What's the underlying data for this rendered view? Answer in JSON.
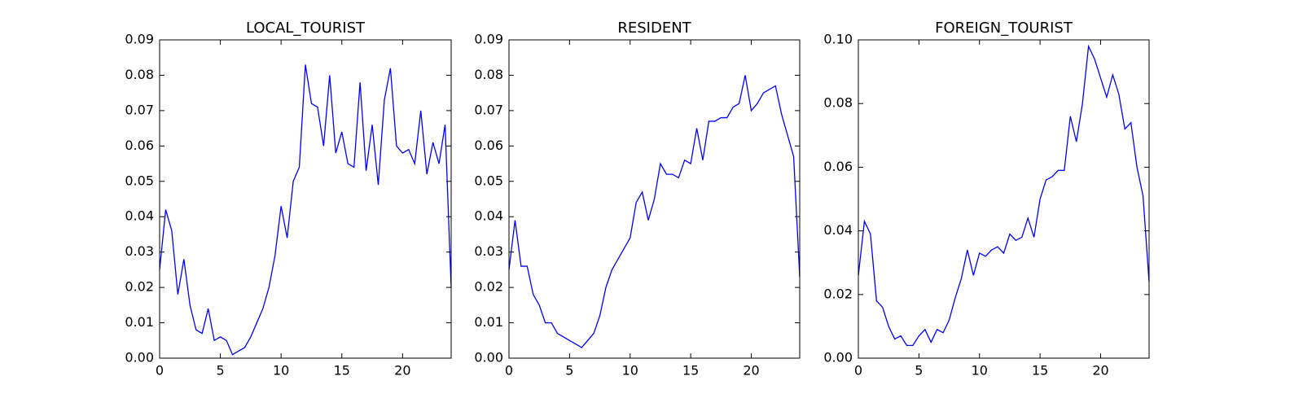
{
  "chart_data": [
    {
      "type": "line",
      "title": "LOCAL_TOURIST",
      "color": "#0000ff",
      "x": [
        0,
        0.5,
        1,
        1.5,
        2,
        2.5,
        3,
        3.5,
        4,
        4.5,
        5,
        5.5,
        6,
        6.5,
        7,
        7.5,
        8,
        8.5,
        9,
        9.5,
        10,
        10.5,
        11,
        11.5,
        12,
        12.5,
        13,
        13.5,
        14,
        14.5,
        15,
        15.5,
        16,
        16.5,
        17,
        17.5,
        18,
        18.5,
        19,
        19.5,
        20,
        20.5,
        21,
        21.5,
        22,
        22.5,
        23,
        23.5,
        24
      ],
      "values": [
        0.025,
        0.042,
        0.036,
        0.018,
        0.028,
        0.015,
        0.008,
        0.007,
        0.014,
        0.005,
        0.006,
        0.005,
        0.001,
        0.002,
        0.003,
        0.006,
        0.01,
        0.014,
        0.02,
        0.029,
        0.043,
        0.034,
        0.05,
        0.054,
        0.083,
        0.072,
        0.071,
        0.06,
        0.08,
        0.058,
        0.064,
        0.055,
        0.054,
        0.078,
        0.053,
        0.066,
        0.049,
        0.073,
        0.082,
        0.06,
        0.058,
        0.059,
        0.055,
        0.07,
        0.052,
        0.061,
        0.055,
        0.066,
        0.02
      ],
      "xlim": [
        0,
        24
      ],
      "xticks": [
        0,
        5,
        10,
        15,
        20
      ],
      "ylim": [
        0,
        0.09
      ],
      "yticks": [
        {
          "value": 0,
          "label": "0.00"
        },
        0.01,
        0.02,
        0.03,
        0.04,
        0.05,
        0.06,
        0.07,
        0.08,
        0.09
      ]
    },
    {
      "type": "line",
      "title": "RESIDENT",
      "color": "#0000ff",
      "x": [
        0,
        0.5,
        1,
        1.5,
        2,
        2.5,
        3,
        3.5,
        4,
        4.5,
        5,
        5.5,
        6,
        6.5,
        7,
        7.5,
        8,
        8.5,
        9,
        9.5,
        10,
        10.5,
        11,
        11.5,
        12,
        12.5,
        13,
        13.5,
        14,
        14.5,
        15,
        15.5,
        16,
        16.5,
        17,
        17.5,
        18,
        18.5,
        19,
        19.5,
        20,
        20.5,
        21,
        21.5,
        22,
        22.5,
        23,
        23.5,
        24
      ],
      "values": [
        0.025,
        0.039,
        0.026,
        0.026,
        0.018,
        0.015,
        0.01,
        0.01,
        0.007,
        0.006,
        0.005,
        0.004,
        0.003,
        0.005,
        0.007,
        0.012,
        0.02,
        0.025,
        0.028,
        0.031,
        0.034,
        0.044,
        0.047,
        0.039,
        0.045,
        0.055,
        0.052,
        0.052,
        0.051,
        0.056,
        0.055,
        0.065,
        0.056,
        0.067,
        0.067,
        0.068,
        0.068,
        0.071,
        0.072,
        0.08,
        0.07,
        0.072,
        0.075,
        0.076,
        0.077,
        0.069,
        0.063,
        0.057,
        0.023
      ],
      "xlim": [
        0,
        24
      ],
      "xticks": [
        0,
        5,
        10,
        15,
        20
      ],
      "ylim": [
        0,
        0.09
      ],
      "yticks": [
        {
          "value": 0,
          "label": "0.00"
        },
        0.01,
        0.02,
        0.03,
        0.04,
        0.05,
        0.06,
        0.07,
        0.08,
        0.09
      ]
    },
    {
      "type": "line",
      "title": "FOREIGN_TOURIST",
      "color": "#0000ff",
      "x": [
        0,
        0.5,
        1,
        1.5,
        2,
        2.5,
        3,
        3.5,
        4,
        4.5,
        5,
        5.5,
        6,
        6.5,
        7,
        7.5,
        8,
        8.5,
        9,
        9.5,
        10,
        10.5,
        11,
        11.5,
        12,
        12.5,
        13,
        13.5,
        14,
        14.5,
        15,
        15.5,
        16,
        16.5,
        17,
        17.5,
        18,
        18.5,
        19,
        19.5,
        20,
        20.5,
        21,
        21.5,
        22,
        22.5,
        23,
        23.5,
        24
      ],
      "values": [
        0.026,
        0.043,
        0.039,
        0.018,
        0.016,
        0.01,
        0.006,
        0.007,
        0.004,
        0.004,
        0.007,
        0.009,
        0.005,
        0.009,
        0.008,
        0.012,
        0.019,
        0.025,
        0.034,
        0.026,
        0.033,
        0.032,
        0.034,
        0.035,
        0.033,
        0.039,
        0.037,
        0.038,
        0.044,
        0.038,
        0.05,
        0.056,
        0.057,
        0.059,
        0.059,
        0.076,
        0.068,
        0.08,
        0.098,
        0.094,
        0.088,
        0.082,
        0.089,
        0.083,
        0.072,
        0.074,
        0.06,
        0.051,
        0.024
      ],
      "xlim": [
        0,
        24
      ],
      "xticks": [
        0,
        5,
        10,
        15,
        20
      ],
      "ylim": [
        0,
        0.1
      ],
      "yticks": [
        {
          "value": 0,
          "label": "0.00"
        },
        0.02,
        0.04,
        0.06,
        0.08,
        {
          "value": 0.1,
          "label": "0.10"
        }
      ]
    }
  ]
}
